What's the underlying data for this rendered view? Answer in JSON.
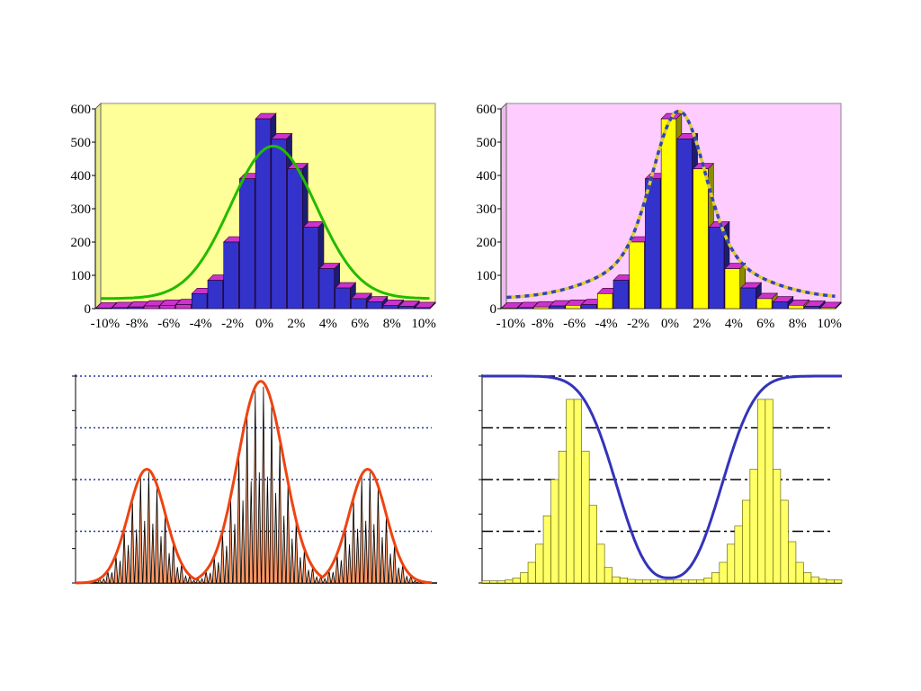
{
  "chart_data": [
    {
      "type": "bar",
      "panel": "top-left",
      "style": "3d histogram with fitted curve",
      "background": "#ffff99",
      "categories": [
        "-10%",
        "-9%",
        "-8%",
        "-7%",
        "-6%",
        "-5%",
        "-4%",
        "-3%",
        "-2%",
        "-1%",
        "0%",
        "1%",
        "2%",
        "3%",
        "4%",
        "5%",
        "6%",
        "7%",
        "8%",
        "9%",
        "10%"
      ],
      "xtick_labels": [
        "-10%",
        "-8%",
        "-6%",
        "-4%",
        "-2%",
        "0%",
        "2%",
        "4%",
        "6%",
        "8%",
        "10%"
      ],
      "ytick_labels": [
        "0",
        "100",
        "200",
        "300",
        "400",
        "500",
        "600"
      ],
      "ylim": [
        0,
        600
      ],
      "values": [
        2,
        3,
        5,
        8,
        10,
        12,
        45,
        85,
        200,
        390,
        570,
        510,
        420,
        245,
        120,
        62,
        30,
        20,
        10,
        7,
        3
      ],
      "bar_colors": [
        "#3333cc",
        "#3333cc",
        "#3333cc",
        "#cc33cc",
        "#cc33cc",
        "#cc33cc",
        "#3333cc",
        "#3333cc",
        "#3333cc",
        "#3333cc",
        "#3333cc",
        "#3333cc",
        "#3333cc",
        "#3333cc",
        "#3333cc",
        "#3333cc",
        "#3333cc",
        "#3333cc",
        "#3333cc",
        "#3333cc",
        "#3333cc"
      ],
      "curve": {
        "kind": "fitted normal",
        "color": "#22bb00",
        "center": 0.5,
        "sigma": 3,
        "peak": 480,
        "tail_level": 22
      }
    },
    {
      "type": "bar",
      "panel": "top-right",
      "style": "3d histogram with fitted curve",
      "background": "#ffccff",
      "categories": [
        "-10%",
        "-9%",
        "-8%",
        "-7%",
        "-6%",
        "-5%",
        "-4%",
        "-3%",
        "-2%",
        "-1%",
        "0%",
        "1%",
        "2%",
        "3%",
        "4%",
        "5%",
        "6%",
        "7%",
        "8%",
        "9%",
        "10%"
      ],
      "xtick_labels": [
        "-10%",
        "-8%",
        "-6%",
        "-4%",
        "-2%",
        "0%",
        "2%",
        "4%",
        "6%",
        "8%",
        "10%"
      ],
      "ytick_labels": [
        "0",
        "100",
        "200",
        "300",
        "400",
        "500",
        "600"
      ],
      "ylim": [
        0,
        600
      ],
      "values": [
        2,
        3,
        5,
        8,
        10,
        12,
        45,
        85,
        200,
        390,
        570,
        510,
        420,
        245,
        120,
        62,
        30,
        20,
        10,
        7,
        3
      ],
      "bar_colors": [
        "#ffff00",
        "#3333cc",
        "#ffff00",
        "#3333cc",
        "#ffff00",
        "#3333cc",
        "#ffff00",
        "#3333cc",
        "#ffff00",
        "#3333cc",
        "#ffff00",
        "#3333cc",
        "#ffff00",
        "#3333cc",
        "#ffff00",
        "#3333cc",
        "#ffff00",
        "#3333cc",
        "#ffff00",
        "#3333cc",
        "#ffff00"
      ],
      "curve": {
        "kind": "fitted fat-tailed",
        "colors": [
          "#3344bb",
          "#ddcc33"
        ],
        "dashed": true,
        "center": 0.5,
        "peak": 585,
        "tail_level": 22
      }
    },
    {
      "type": "bar",
      "panel": "bottom-left",
      "style": "three-peak spike distribution with envelope",
      "ylim": [
        0,
        4
      ],
      "gridlines": [
        1,
        2,
        3,
        4
      ],
      "spike_color": "#000000",
      "fill_color": "#ff9966",
      "envelope_color": "#ee4411",
      "peaks": [
        {
          "center": 0.2,
          "height": 2.2,
          "width": 0.052
        },
        {
          "center": 0.52,
          "height": 3.9,
          "width": 0.065
        },
        {
          "center": 0.82,
          "height": 2.2,
          "width": 0.052
        }
      ]
    },
    {
      "type": "bar",
      "panel": "bottom-right",
      "style": "bimodal histogram with inverted curve",
      "ylim": [
        0,
        4
      ],
      "gridlines": [
        1,
        2,
        3,
        4
      ],
      "bar_color": "#ffff66",
      "curve_color": "#3333bb",
      "values": [
        0.04,
        0.04,
        0.04,
        0.06,
        0.1,
        0.2,
        0.4,
        0.75,
        1.3,
        2.0,
        2.55,
        3.55,
        3.55,
        2.55,
        1.5,
        0.75,
        0.3,
        0.12,
        0.1,
        0.07,
        0.06,
        0.06,
        0.06,
        0.06,
        0.06,
        0.06,
        0.06,
        0.06,
        0.06,
        0.1,
        0.2,
        0.4,
        0.75,
        1.1,
        1.6,
        2.2,
        3.55,
        3.55,
        2.2,
        1.6,
        0.8,
        0.4,
        0.2,
        0.12,
        0.08,
        0.06,
        0.06
      ]
    }
  ]
}
